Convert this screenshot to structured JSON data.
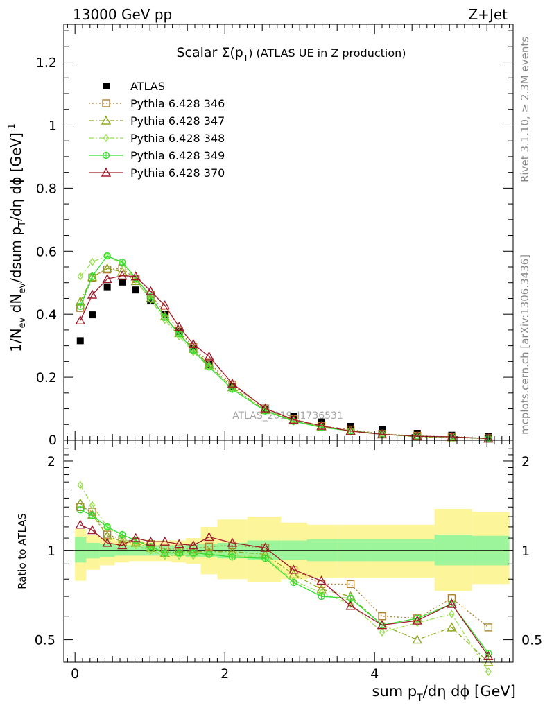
{
  "header": {
    "left": "13000 GeV pp",
    "right": "Z+Jet"
  },
  "side_text": {
    "rivet": "Rivet 3.1.10, ≥ 2.3M events",
    "mcplots": "mcplots.cern.ch [arXiv:1306.3436]"
  },
  "watermark": "ATLAS_2019_I1736531",
  "chart_data": [
    {
      "type": "line",
      "title": "Scalar Σ(pT) (ATLAS UE in Z production)",
      "title_main": "Scalar Σ(p",
      "title_sub": "T",
      "title_tail": ") (ATLAS UE in Z production)",
      "ylabel": "1/Nev dNev/dsum pT/dη dφ [GeV]-1",
      "xlim": [
        -0.15,
        5.85
      ],
      "ylim": [
        0,
        1.32
      ],
      "y_ticks": [
        0.2,
        0.4,
        0.6,
        0.8,
        1,
        1.2
      ],
      "y_tick_labels": [
        "0.2",
        "0.4",
        "0.6",
        "0.8",
        "1",
        "1.2"
      ],
      "x": [
        0.07,
        0.23,
        0.43,
        0.63,
        0.81,
        1.01,
        1.2,
        1.39,
        1.58,
        1.79,
        2.1,
        2.54,
        2.92,
        3.29,
        3.68,
        4.1,
        4.57,
        5.03,
        5.52
      ],
      "series": [
        {
          "name": "ATLAS",
          "color": "#000000",
          "marker": "filled-square",
          "line": "none",
          "values": [
            0.316,
            0.398,
            0.487,
            0.502,
            0.477,
            0.442,
            0.4,
            0.345,
            0.293,
            0.24,
            0.17,
            0.099,
            0.076,
            0.058,
            0.044,
            0.034,
            0.022,
            0.016,
            0.012
          ]
        },
        {
          "name": "Pythia 6.428 346",
          "color": "#b08030",
          "marker": "open-square",
          "line": "dotted",
          "values": [
            0.42,
            0.516,
            0.542,
            0.545,
            0.512,
            0.462,
            0.405,
            0.348,
            0.296,
            0.246,
            0.176,
            0.101,
            0.067,
            0.045,
            0.034,
            0.02,
            0.014,
            0.011,
            0.0065
          ]
        },
        {
          "name": "Pythia 6.428 347",
          "color": "#8daa1e",
          "marker": "open-triangle",
          "line": "dashdot",
          "values": [
            0.44,
            0.518,
            0.545,
            0.535,
            0.505,
            0.45,
            0.393,
            0.34,
            0.29,
            0.238,
            0.168,
            0.096,
            0.063,
            0.043,
            0.031,
            0.019,
            0.011,
            0.009,
            0.005
          ]
        },
        {
          "name": "Pythia 6.428 348",
          "color": "#99e050",
          "marker": "open-diamond",
          "line": "dashdot",
          "values": [
            0.52,
            0.566,
            0.585,
            0.56,
            0.51,
            0.446,
            0.382,
            0.33,
            0.28,
            0.232,
            0.163,
            0.094,
            0.06,
            0.042,
            0.029,
            0.018,
            0.013,
            0.01,
            0.0055
          ]
        },
        {
          "name": "Pythia 6.428 349",
          "color": "#33dd33",
          "marker": "crossed-circle",
          "line": "solid",
          "values": [
            0.425,
            0.52,
            0.585,
            0.565,
            0.515,
            0.455,
            0.39,
            0.338,
            0.285,
            0.233,
            0.162,
            0.093,
            0.06,
            0.041,
            0.03,
            0.019,
            0.013,
            0.011,
            0.0055
          ]
        },
        {
          "name": "Pythia 6.428 370",
          "color": "#a01c2c",
          "marker": "open-triangle",
          "line": "solid",
          "values": [
            0.38,
            0.462,
            0.512,
            0.522,
            0.52,
            0.473,
            0.428,
            0.36,
            0.305,
            0.266,
            0.18,
            0.101,
            0.065,
            0.046,
            0.029,
            0.019,
            0.013,
            0.011,
            0.0055
          ]
        }
      ]
    },
    {
      "type": "line",
      "ylabel": "Ratio to ATLAS",
      "xlabel": "sum pT/dη dφ [GeV]",
      "log_y": true,
      "ylim": [
        0.42,
        2.35
      ],
      "y_ticks": [
        0.5,
        1,
        2
      ],
      "y_tick_labels": [
        "0.5",
        "1",
        "2"
      ],
      "x_ticks": [
        0,
        2,
        4
      ],
      "x_tick_labels": [
        "0",
        "2",
        "4"
      ],
      "bin_edges": [
        0,
        0.15,
        0.33,
        0.53,
        0.72,
        0.91,
        1.1,
        1.29,
        1.48,
        1.68,
        1.9,
        2.3,
        2.75,
        3.1,
        3.5,
        3.9,
        4.35,
        4.8,
        5.3,
        5.8
      ],
      "band_green": [
        [
          0.91,
          1.11
        ],
        [
          0.94,
          1.06
        ],
        [
          0.95,
          1.05
        ],
        [
          0.96,
          1.04
        ],
        [
          0.96,
          1.04
        ],
        [
          0.96,
          1.04
        ],
        [
          0.96,
          1.04
        ],
        [
          0.96,
          1.04
        ],
        [
          0.95,
          1.05
        ],
        [
          0.95,
          1.05
        ],
        [
          0.94,
          1.06
        ],
        [
          0.93,
          1.08
        ],
        [
          0.93,
          1.08
        ],
        [
          0.92,
          1.09
        ],
        [
          0.92,
          1.09
        ],
        [
          0.92,
          1.09
        ],
        [
          0.92,
          1.09
        ],
        [
          0.89,
          1.13
        ],
        [
          0.89,
          1.12
        ]
      ],
      "band_yellow": [
        [
          0.79,
          1.18
        ],
        [
          0.86,
          1.13
        ],
        [
          0.89,
          1.1
        ],
        [
          0.91,
          1.08
        ],
        [
          0.92,
          1.08
        ],
        [
          0.92,
          1.07
        ],
        [
          0.92,
          1.08
        ],
        [
          0.91,
          1.08
        ],
        [
          0.9,
          1.1
        ],
        [
          0.83,
          1.2
        ],
        [
          0.8,
          1.27
        ],
        [
          0.78,
          1.3
        ],
        [
          0.8,
          1.24
        ],
        [
          0.81,
          1.22
        ],
        [
          0.81,
          1.22
        ],
        [
          0.81,
          1.22
        ],
        [
          0.81,
          1.22
        ],
        [
          0.73,
          1.38
        ],
        [
          0.77,
          1.35
        ]
      ],
      "series": [
        {
          "name": "Pythia 6.428 346",
          "color": "#b08030",
          "marker": "open-square",
          "line": "dotted",
          "values": [
            1.4,
            1.35,
            1.13,
            1.09,
            1.07,
            1.05,
            1.01,
            1.01,
            1.01,
            1.03,
            1.04,
            1.02,
            0.86,
            0.77,
            0.77,
            0.6,
            0.59,
            0.69,
            0.55
          ]
        },
        {
          "name": "Pythia 6.428 347",
          "color": "#8daa1e",
          "marker": "open-triangle",
          "line": "dashdot",
          "values": [
            1.44,
            1.32,
            1.12,
            1.07,
            1.06,
            1.02,
            0.98,
            0.99,
            0.99,
            0.99,
            0.99,
            0.97,
            0.83,
            0.74,
            0.7,
            0.56,
            0.5,
            0.55,
            0.42
          ]
        },
        {
          "name": "Pythia 6.428 348",
          "color": "#99e050",
          "marker": "open-diamond",
          "line": "dashdot",
          "values": [
            1.66,
            1.42,
            1.2,
            1.1,
            1.04,
            1.0,
            0.96,
            0.96,
            0.96,
            0.97,
            0.96,
            0.95,
            0.79,
            0.72,
            0.66,
            0.53,
            0.57,
            0.61,
            0.39
          ]
        },
        {
          "name": "Pythia 6.428 349",
          "color": "#33dd33",
          "marker": "crossed-circle",
          "line": "solid",
          "values": [
            1.37,
            1.31,
            1.2,
            1.13,
            1.08,
            1.03,
            0.98,
            0.98,
            0.98,
            0.97,
            0.95,
            0.94,
            0.78,
            0.7,
            0.69,
            0.56,
            0.59,
            0.66,
            0.45
          ]
        },
        {
          "name": "Pythia 6.428 370",
          "color": "#a01c2c",
          "marker": "open-triangle",
          "line": "solid",
          "values": [
            1.22,
            1.17,
            1.06,
            1.04,
            1.1,
            1.07,
            1.07,
            1.05,
            1.04,
            1.11,
            1.06,
            1.02,
            0.86,
            0.79,
            0.65,
            0.56,
            0.58,
            0.66,
            0.44
          ]
        }
      ]
    }
  ]
}
